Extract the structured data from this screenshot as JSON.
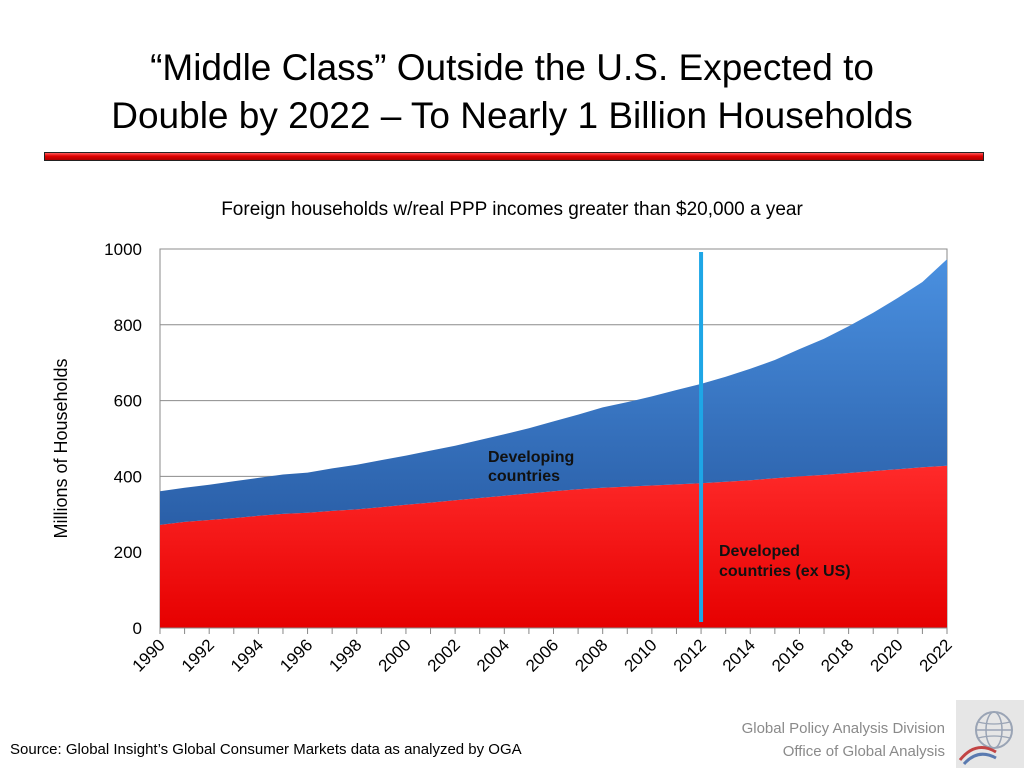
{
  "slide": {
    "title_line1": "“Middle Class” Outside the U.S. Expected to",
    "title_line2": "Double by 2022 – To Nearly 1 Billion Households"
  },
  "chart_data": {
    "type": "area",
    "subtitle": "Foreign households w/real PPP incomes greater than $20,000 a year",
    "ylabel": "Millions of Households",
    "ylim": [
      0,
      1000
    ],
    "yticks": [
      0,
      200,
      400,
      600,
      800,
      1000
    ],
    "x": [
      1990,
      1991,
      1992,
      1993,
      1994,
      1995,
      1996,
      1997,
      1998,
      1999,
      2000,
      2001,
      2002,
      2003,
      2004,
      2005,
      2006,
      2007,
      2008,
      2009,
      2010,
      2011,
      2012,
      2013,
      2014,
      2015,
      2016,
      2017,
      2018,
      2019,
      2020,
      2021,
      2022
    ],
    "xticks": [
      "1990",
      "1992",
      "1994",
      "1996",
      "1998",
      "2000",
      "2002",
      "2004",
      "2006",
      "2008",
      "2010",
      "2012",
      "2014",
      "2016",
      "2018",
      "2020",
      "2022"
    ],
    "stacked": true,
    "grid": "horizontal",
    "series": [
      {
        "name": "Developed countries (ex US)",
        "color": "#ff0000",
        "values": [
          272,
          280,
          285,
          290,
          296,
          301,
          304,
          309,
          313,
          319,
          325,
          331,
          337,
          343,
          349,
          355,
          361,
          366,
          370,
          373,
          376,
          379,
          382,
          386,
          390,
          395,
          400,
          404,
          409,
          414,
          419,
          424,
          428
        ]
      },
      {
        "name": "Developing countries",
        "color": "#3b78c9",
        "values": [
          89,
          90,
          93,
          97,
          100,
          104,
          106,
          112,
          118,
          124,
          130,
          137,
          144,
          153,
          162,
          172,
          184,
          197,
          212,
          223,
          235,
          249,
          262,
          277,
          294,
          312,
          336,
          359,
          387,
          418,
          452,
          489,
          545
        ]
      }
    ],
    "marker": {
      "x": 2012,
      "color": "#1ea6e6"
    },
    "labels": {
      "developing_line1": "Developing",
      "developing_line2": "countries",
      "developed_line1": "Developed",
      "developed_line2": "countries (ex US)"
    }
  },
  "footer": {
    "source": "Source: Global Insight’s Global Consumer Markets data as analyzed by OGA",
    "credit_line1": "Global Policy Analysis Division",
    "credit_line2": "Office of Global Analysis"
  },
  "logo": {
    "icon": "globe-icon"
  }
}
